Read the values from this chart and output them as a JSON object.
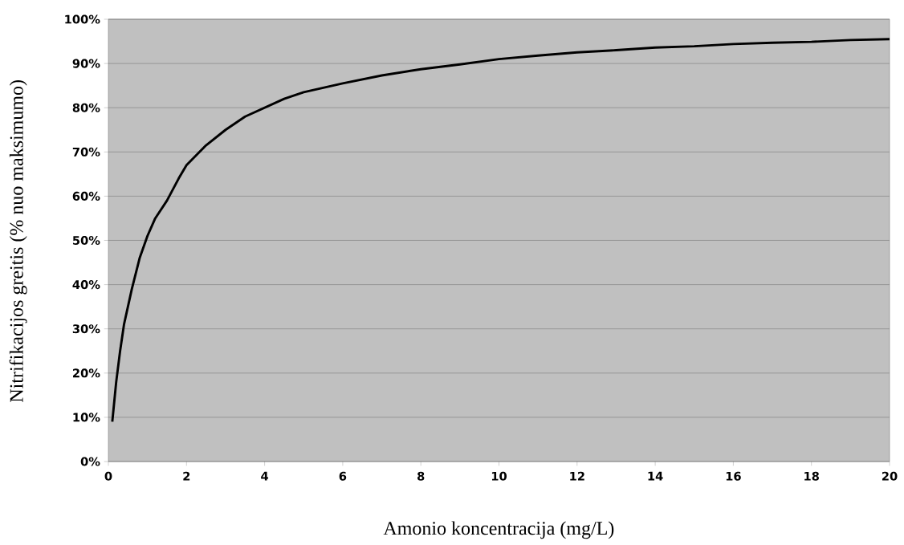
{
  "chart_data": {
    "type": "line",
    "xlabel": "Amonio koncentracija (mg/L)",
    "ylabel": "Nitrifikacijos greitis (% nuo maksimumo)",
    "series": [
      {
        "color": "#000000",
        "x": [
          0.1,
          0.2,
          0.3,
          0.4,
          0.5,
          0.6,
          0.8,
          1.0,
          1.2,
          1.5,
          1.8,
          2.0,
          2.5,
          3.0,
          3.5,
          4.0,
          4.5,
          5.0,
          6.0,
          7.0,
          8.0,
          9.0,
          10.0,
          11.0,
          12.0,
          13.0,
          14.0,
          15.0,
          16.0,
          17.0,
          18.0,
          19.0,
          20.0
        ],
        "values": [
          9,
          18,
          25,
          31,
          35,
          39,
          46,
          51,
          55,
          59,
          64,
          67,
          71.5,
          75,
          78,
          80,
          82,
          83.5,
          85.5,
          87.3,
          88.7,
          89.8,
          91,
          91.8,
          92.5,
          93,
          93.6,
          93.9,
          94.4,
          94.7,
          94.9,
          95.3,
          95.5
        ]
      }
    ],
    "xlim": [
      0,
      20
    ],
    "ylim": [
      0,
      100
    ],
    "xticks": [
      0,
      2,
      4,
      6,
      8,
      10,
      12,
      14,
      16,
      18,
      20
    ],
    "yticks": [
      {
        "value": 0,
        "label": "0%"
      },
      {
        "value": 10,
        "label": "10%"
      },
      {
        "value": 20,
        "label": "20%"
      },
      {
        "value": 30,
        "label": "30%"
      },
      {
        "value": 40,
        "label": "40%"
      },
      {
        "value": 50,
        "label": "50%"
      },
      {
        "value": 60,
        "label": "60%"
      },
      {
        "value": 70,
        "label": "70%"
      },
      {
        "value": 80,
        "label": "80%"
      },
      {
        "value": 90,
        "label": "90%"
      },
      {
        "value": 100,
        "label": "100%"
      }
    ],
    "grid": "y",
    "marker": "none",
    "line_style": "solid"
  }
}
